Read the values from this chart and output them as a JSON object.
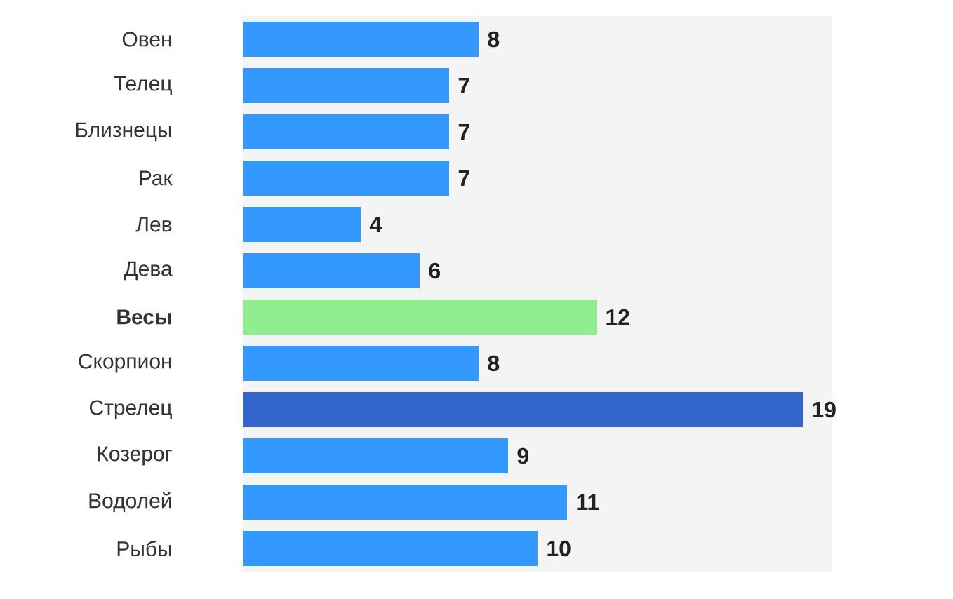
{
  "chart_data": {
    "type": "bar",
    "orientation": "horizontal",
    "categories": [
      "Овен",
      "Телец",
      "Близнецы",
      "Рак",
      "Лев",
      "Дева",
      "**Весы**",
      "Скорпион",
      "Стрелец",
      "Козерог",
      "Водолей",
      "Рыбы"
    ],
    "values": [
      8,
      7,
      7,
      7,
      4,
      6,
      12,
      8,
      19,
      9,
      11,
      10
    ],
    "colors": [
      "#3399ff",
      "#3399ff",
      "#3399ff",
      "#3399ff",
      "#3399ff",
      "#3399ff",
      "#90ee90",
      "#3399ff",
      "#3366cc",
      "#3399ff",
      "#3399ff",
      "#3399ff"
    ],
    "xlim": [
      0,
      20
    ],
    "bands": [
      {
        "axis": "x",
        "from": 0,
        "to": 20,
        "color": "#f4f4f4"
      }
    ],
    "data_labels": true,
    "tick_labels": "y"
  }
}
